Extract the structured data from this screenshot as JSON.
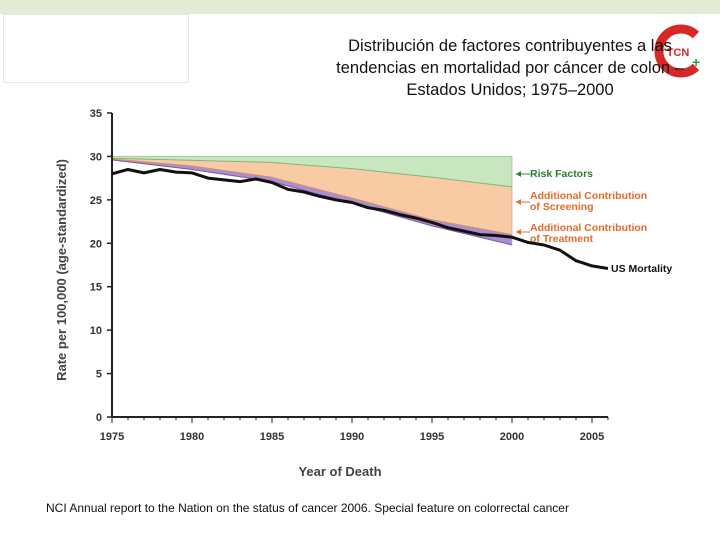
{
  "slide": {
    "title": "Distribución de factores contribuyentes a las tendencias en mortalidad por cáncer de colon – Estados Unidos; 1975–2000",
    "footnote": "NCI Annual report to the Nation on the status of cancer 2006. Special feature on colorrectal cancer",
    "logo_text": "TCN"
  },
  "colors": {
    "risk": "#c8e6c0",
    "screening": "#f8cba4",
    "treatment": "#a98ed2",
    "line": "#111111",
    "axis": "#222222",
    "label_risk": "#2e7d32",
    "label_other": "#e06b2c",
    "logo_red": "#d62828",
    "logo_green": "#2f9e44"
  },
  "chart_data": {
    "type": "area",
    "ylabel": "Rate per 100,000 (age-standardized)",
    "xlabel": "Year of Death",
    "xlim": [
      1975,
      2006
    ],
    "ylim": [
      0,
      35
    ],
    "xticks": [
      1975,
      1980,
      1985,
      1990,
      1995,
      2000,
      2005
    ],
    "yticks": [
      0,
      5,
      10,
      15,
      20,
      25,
      30,
      35
    ],
    "series": [
      {
        "name": "Risk Factors",
        "label": "Risk Factors",
        "x": [
          1975,
          1985,
          1990,
          1995,
          2000
        ],
        "lower": [
          29.8,
          29.3,
          28.6,
          27.6,
          26.5
        ],
        "upper": [
          30.0,
          30.0,
          30.0,
          30.0,
          30.0
        ]
      },
      {
        "name": "Additional Contribution of Screening",
        "label": "Additional Contribution of Screening",
        "x": [
          1975,
          1980,
          1985,
          1990,
          1995,
          2000
        ],
        "lower": [
          29.7,
          28.9,
          27.6,
          25.2,
          22.7,
          21.0
        ],
        "upper": [
          29.8,
          29.6,
          29.3,
          28.6,
          27.6,
          26.5
        ]
      },
      {
        "name": "Additional Contribution of Treatment",
        "label": "Additional Contribution of Treatment",
        "x": [
          1975,
          1980,
          1985,
          1990,
          1995,
          2000
        ],
        "lower": [
          29.6,
          28.5,
          27.1,
          24.6,
          22.0,
          19.8
        ],
        "upper": [
          29.7,
          28.9,
          27.6,
          25.2,
          22.7,
          21.0
        ]
      },
      {
        "name": "US Mortality",
        "label": "US Mortality",
        "x": [
          1975,
          1976,
          1977,
          1978,
          1979,
          1980,
          1981,
          1982,
          1983,
          1984,
          1985,
          1986,
          1987,
          1988,
          1989,
          1990,
          1991,
          1992,
          1993,
          1994,
          1995,
          1996,
          1997,
          1998,
          1999,
          2000,
          2001,
          2002,
          2003,
          2004,
          2005,
          2006
        ],
        "values": [
          28.0,
          28.5,
          28.1,
          28.5,
          28.2,
          28.1,
          27.5,
          27.3,
          27.1,
          27.4,
          27.0,
          26.2,
          25.9,
          25.4,
          25.0,
          24.7,
          24.1,
          23.8,
          23.3,
          22.9,
          22.4,
          21.8,
          21.4,
          21.0,
          20.9,
          20.7,
          20.1,
          19.8,
          19.2,
          18.0,
          17.4,
          17.1
        ]
      }
    ],
    "labels": {
      "risk": [
        "Risk Factors"
      ],
      "screening": [
        "Additional Contribution",
        "of Screening"
      ],
      "treatment": [
        "Additional Contribution",
        "of Treatment"
      ],
      "mortality": [
        "US Mortality"
      ]
    }
  }
}
